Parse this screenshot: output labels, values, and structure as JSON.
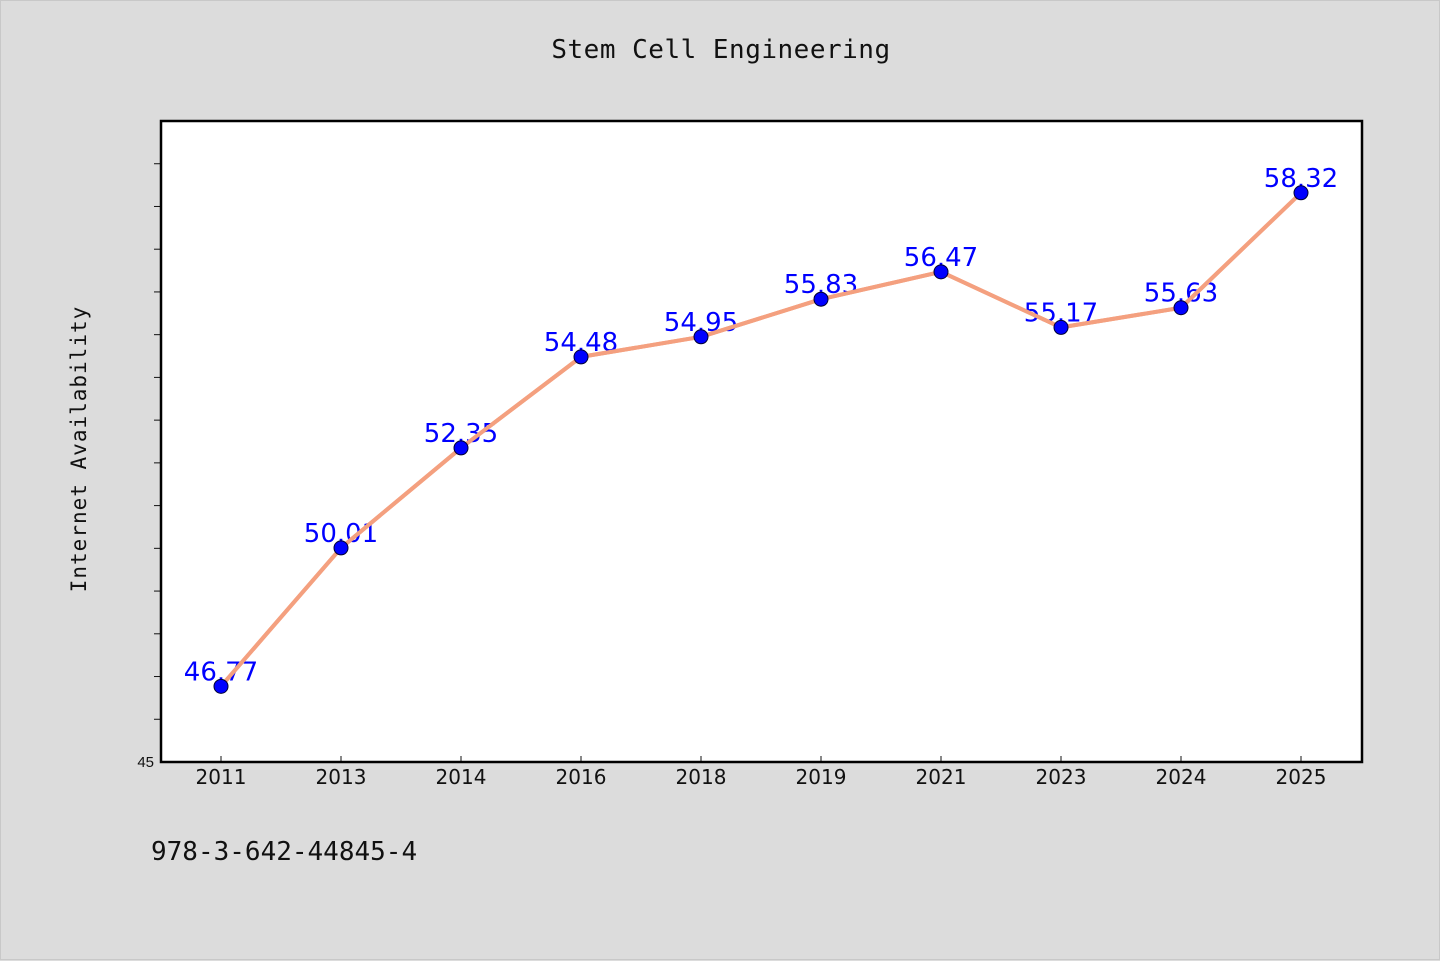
{
  "chart_data": {
    "type": "line",
    "title": "Stem Cell Engineering",
    "xlabel": "",
    "ylabel": "Internet Availability",
    "categories": [
      "2011",
      "2013",
      "2014",
      "2016",
      "2018",
      "2019",
      "2021",
      "2023",
      "2024",
      "2025"
    ],
    "series": [
      {
        "values": [
          46.77,
          50.01,
          52.35,
          54.48,
          54.95,
          55.83,
          56.47,
          55.17,
          55.63,
          58.32
        ]
      }
    ],
    "data_labels": [
      "46.77",
      "50.01",
      "52.35",
      "54.48",
      "54.95",
      "55.83",
      "56.47",
      "55.17",
      "55.63",
      "58.32"
    ],
    "ylim": [
      45,
      60
    ],
    "y_tick_labels": [
      "45"
    ],
    "grid": false,
    "legend": "none",
    "colors": {
      "line": "#f4a07f",
      "marker": "#0000ff",
      "label": "#0000ff",
      "plot_background": "#ffffff",
      "figure_background": "#dcdcdc"
    }
  },
  "footer": {
    "isbn": "978-3-642-44845-4"
  }
}
